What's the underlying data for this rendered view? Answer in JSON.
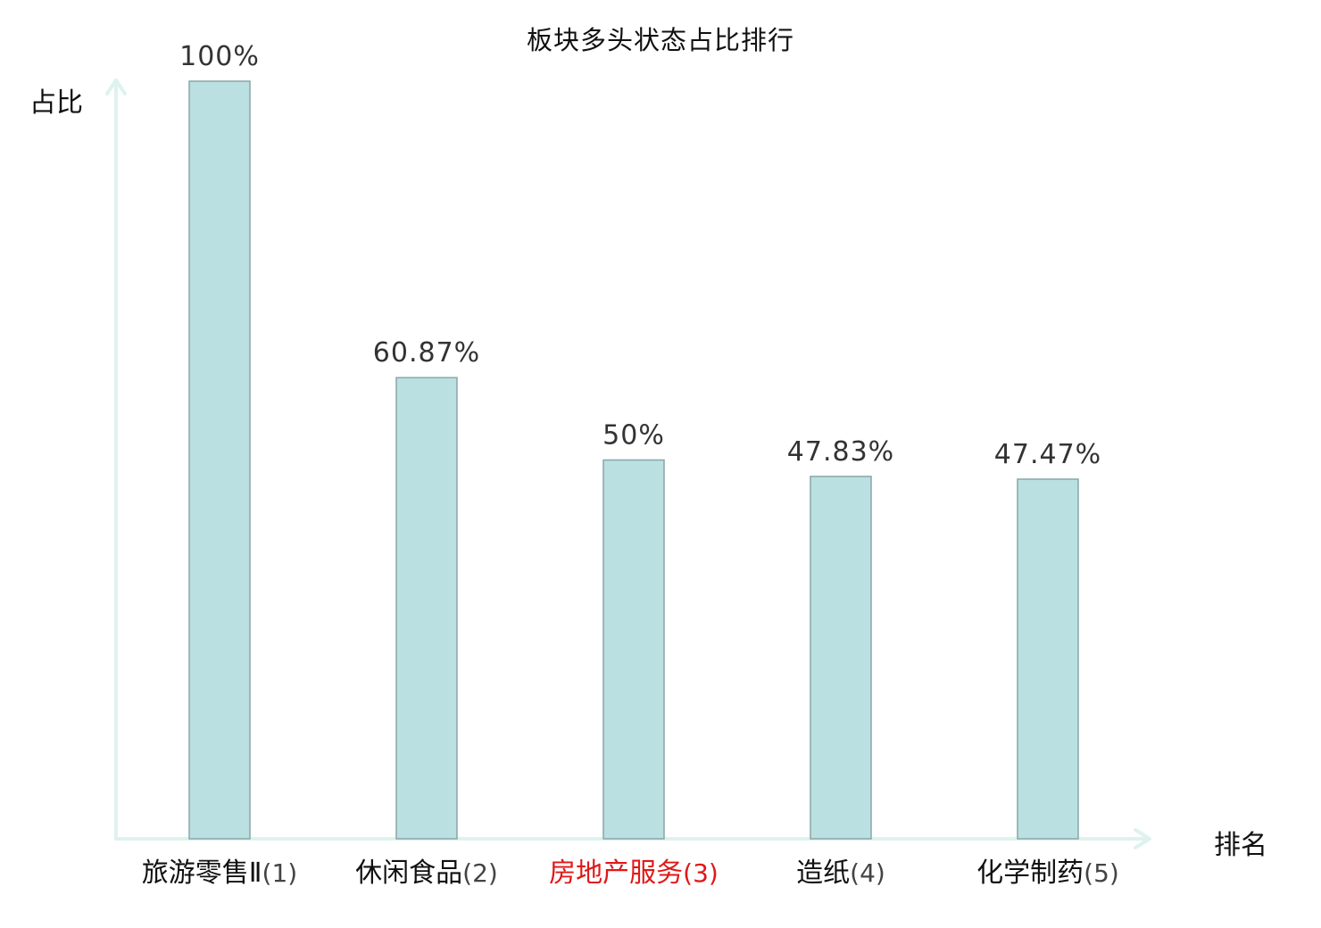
{
  "chart_data": {
    "type": "bar",
    "title": "板块多头状态占比排行",
    "ylabel": "占比",
    "xlabel": "排名",
    "ylim": [
      0,
      100
    ],
    "grid": false,
    "categories": [
      {
        "name": "旅游零售Ⅱ",
        "rank": "(1)",
        "highlight": false
      },
      {
        "name": "休闲食品",
        "rank": "(2)",
        "highlight": false
      },
      {
        "name": "房地产服务",
        "rank": "(3)",
        "highlight": true
      },
      {
        "name": "造纸",
        "rank": "(4)",
        "highlight": false
      },
      {
        "name": "化学制药",
        "rank": "(5)",
        "highlight": false
      }
    ],
    "values": [
      100,
      60.87,
      50,
      47.83,
      47.47
    ],
    "value_labels": [
      "100%",
      "60.87%",
      "50%",
      "47.83%",
      "47.47%"
    ],
    "colors": {
      "bar_fill": "#bbe0e2",
      "bar_stroke": "#8aa6a8",
      "axis": "#def2ef",
      "highlight_text": "#e01818"
    }
  }
}
